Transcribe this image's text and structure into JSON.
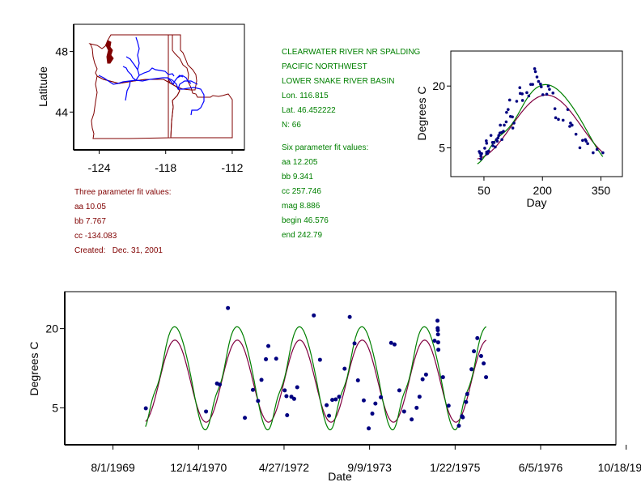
{
  "colors": {
    "map_border": "#800000",
    "rivers": "#0000ff",
    "points": "#000080",
    "three_param_curve": "#800040",
    "six_param_curve": "#008000",
    "info_red": "#800000",
    "info_green": "#008000"
  },
  "station": {
    "name": "CLEARWATER RIVER NR SPALDING",
    "region": "PACIFIC NORTHWEST",
    "basin": "LOWER SNAKE RIVER BASIN",
    "lon": "Lon. 116.815",
    "lat": "Lat. 46.452222",
    "n": "N: 66"
  },
  "three_param": {
    "title": "Three parameter fit values:",
    "aa": "aa 10.05",
    "bb": "bb 7.767",
    "cc": "cc -134.083",
    "created": "Created:   Dec. 31, 2001"
  },
  "six_param": {
    "title": "Six parameter fit values:",
    "aa": "aa 12.205",
    "bb": "bb 9.341",
    "cc": "cc 257.746",
    "mag": "mag 8.886",
    "begin": "begin 46.576",
    "end": "end 242.79"
  },
  "chart_data": [
    {
      "type": "map",
      "ylabel": "Latitude",
      "xlabel": "",
      "x_ticks": [
        "-124",
        "-118",
        "-112"
      ],
      "x_tick_values": [
        -124,
        -118,
        -112
      ],
      "y_ticks": [
        "48",
        "44"
      ],
      "y_tick_values": [
        48,
        44
      ],
      "xlim": [
        -126.3,
        -110.9
      ],
      "ylim": [
        41.5,
        49.8
      ],
      "content": "Outline of Washington, Oregon and Idaho with Columbia/Snake river network"
    },
    {
      "type": "scatter",
      "title": "",
      "xlabel": "Day",
      "ylabel": "Degrees C",
      "x_ticks": [
        "50",
        "200",
        "350"
      ],
      "x_tick_values": [
        50,
        200,
        350
      ],
      "y_ticks": [
        "20",
        "5"
      ],
      "y_tick_values": [
        20,
        5
      ],
      "xlim": [
        -35,
        405
      ],
      "ylim": [
        -2,
        28.5
      ],
      "points": [
        [
          38,
          4.1
        ],
        [
          40,
          3.7
        ],
        [
          42,
          3.0
        ],
        [
          42,
          2.3
        ],
        [
          44,
          3.6
        ],
        [
          52,
          4.9
        ],
        [
          56,
          6.7
        ],
        [
          57,
          6.1
        ],
        [
          57,
          4.0
        ],
        [
          57,
          3.6
        ],
        [
          59,
          3.6
        ],
        [
          62,
          4.2
        ],
        [
          68,
          8.0
        ],
        [
          72,
          6.3
        ],
        [
          73,
          5.5
        ],
        [
          75,
          6.3
        ],
        [
          76,
          6.3
        ],
        [
          79,
          5.2
        ],
        [
          82,
          7.0
        ],
        [
          84,
          6.6
        ],
        [
          86,
          7.4
        ],
        [
          88,
          8.0
        ],
        [
          91,
          8.6
        ],
        [
          92,
          10.5
        ],
        [
          95,
          8.7
        ],
        [
          96,
          7.0
        ],
        [
          100,
          9.0
        ],
        [
          102,
          10.5
        ],
        [
          107,
          11.3
        ],
        [
          108,
          13.6
        ],
        [
          112,
          14.3
        ],
        [
          116,
          16.6
        ],
        [
          118,
          12.6
        ],
        [
          123,
          12.5
        ],
        [
          124,
          9.8
        ],
        [
          127,
          11.0
        ],
        [
          134,
          16.3
        ],
        [
          142,
          19.6
        ],
        [
          143,
          18.2
        ],
        [
          148,
          18.1
        ],
        [
          149,
          16.5
        ],
        [
          160,
          18.4
        ],
        [
          165,
          17.6
        ],
        [
          170,
          20.4
        ],
        [
          175,
          20.4
        ],
        [
          180,
          24.2
        ],
        [
          182,
          23.5
        ],
        [
          186,
          22.2
        ],
        [
          190,
          21.1
        ],
        [
          195,
          20.5
        ],
        [
          197,
          19.8
        ],
        [
          201,
          17.9
        ],
        [
          211,
          18.0
        ],
        [
          215,
          20.0
        ],
        [
          218,
          19.2
        ],
        [
          227,
          18.3
        ],
        [
          232,
          14.5
        ],
        [
          234,
          12.3
        ],
        [
          241,
          11.9
        ],
        [
          253,
          11.7
        ],
        [
          265,
          14.3
        ],
        [
          270,
          10.2
        ],
        [
          272,
          11.0
        ],
        [
          276,
          10.5
        ],
        [
          286,
          8.3
        ],
        [
          296,
          5.0
        ],
        [
          303,
          6.8
        ],
        [
          310,
          7.0
        ],
        [
          312,
          6.6
        ],
        [
          316,
          6.0
        ],
        [
          330,
          3.8
        ],
        [
          340,
          4.6
        ],
        [
          355,
          3.8
        ]
      ],
      "series": [
        {
          "name": "Three parameter fit",
          "color": "#800040"
        },
        {
          "name": "Six parameter fit",
          "color": "#008000"
        }
      ]
    },
    {
      "type": "line",
      "title": "",
      "xlabel": "Date",
      "ylabel": "Degrees C",
      "x_ticks": [
        "8/1/1969",
        "12/14/1970",
        "4/27/1972",
        "9/9/1973",
        "1/22/1975",
        "6/5/1976",
        "10/18/1977"
      ],
      "y_ticks": [
        "20",
        "5"
      ],
      "y_tick_values": [
        20,
        5
      ],
      "ylim": [
        -2,
        27
      ],
      "xlim_days_since_1969_08_01": [
        -282,
        2940
      ],
      "points_days_since_1969_08_01": [
        [
          192,
          4.9
        ],
        [
          544,
          4.3
        ],
        [
          608,
          9.6
        ],
        [
          624,
          9.4
        ],
        [
          672,
          23.9
        ],
        [
          771,
          3.1
        ],
        [
          818,
          8.4
        ],
        [
          848,
          6.3
        ],
        [
          868,
          10.3
        ],
        [
          894,
          14.2
        ],
        [
          908,
          16.7
        ],
        [
          954,
          14.3
        ],
        [
          1004,
          8.3
        ],
        [
          1014,
          7.2
        ],
        [
          1018,
          3.6
        ],
        [
          1043,
          7.1
        ],
        [
          1059,
          6.7
        ],
        [
          1077,
          8.9
        ],
        [
          1174,
          22.5
        ],
        [
          1210,
          14.1
        ],
        [
          1249,
          5.5
        ],
        [
          1263,
          3.5
        ],
        [
          1282,
          6.5
        ],
        [
          1302,
          6.6
        ],
        [
          1322,
          7.1
        ],
        [
          1354,
          12.4
        ],
        [
          1384,
          22.2
        ],
        [
          1412,
          17.2
        ],
        [
          1432,
          10.2
        ],
        [
          1466,
          6.4
        ],
        [
          1495,
          1.1
        ],
        [
          1516,
          3.9
        ],
        [
          1534,
          5.8
        ],
        [
          1566,
          7.0
        ],
        [
          1626,
          17.3
        ],
        [
          1646,
          17.0
        ],
        [
          1674,
          8.3
        ],
        [
          1702,
          4.3
        ],
        [
          1746,
          2.8
        ],
        [
          1775,
          5.0
        ],
        [
          1792,
          7.1
        ],
        [
          1810,
          10.4
        ],
        [
          1830,
          11.3
        ],
        [
          1880,
          17.7
        ],
        [
          1897,
          21.5
        ],
        [
          1898,
          20.1
        ],
        [
          1899,
          19.7
        ],
        [
          1900,
          18.9
        ],
        [
          1901,
          17.4
        ],
        [
          1902,
          16.0
        ],
        [
          1929,
          10.8
        ],
        [
          1962,
          5.4
        ],
        [
          2022,
          1.6
        ],
        [
          2040,
          3.4
        ],
        [
          2045,
          3.2
        ],
        [
          2064,
          6.1
        ],
        [
          2071,
          7.6
        ],
        [
          2096,
          12.3
        ],
        [
          2110,
          15.7
        ],
        [
          2130,
          18.2
        ],
        [
          2152,
          14.8
        ],
        [
          2167,
          13.4
        ],
        [
          2181,
          10.8
        ]
      ],
      "series": [
        {
          "name": "Three parameter fit",
          "color": "#800040"
        },
        {
          "name": "Six parameter fit",
          "color": "#008000"
        }
      ]
    }
  ]
}
